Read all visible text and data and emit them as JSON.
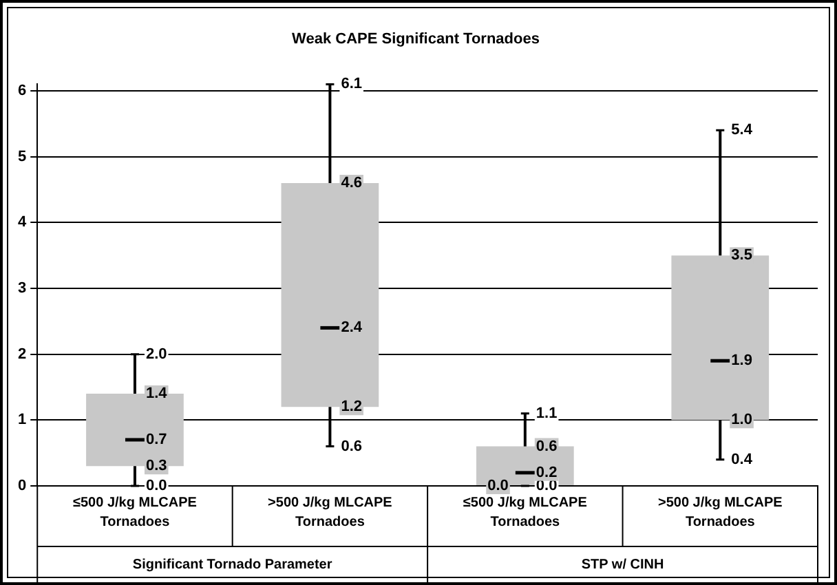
{
  "chart_data": {
    "type": "box",
    "title": "Weak CAPE Significant Tornadoes",
    "categories": [
      "≤500 J/kg MLCAPE Tornadoes",
      ">500 J/kg MLCAPE Tornadoes",
      "≤500 J/kg MLCAPE Tornadoes",
      ">500 J/kg MLCAPE Tornadoes"
    ],
    "boxes": [
      {
        "low": 0.0,
        "q1": 0.3,
        "median": 0.7,
        "q3": 1.4,
        "high": 2.0
      },
      {
        "low": 0.6,
        "q1": 1.2,
        "median": 2.4,
        "q3": 4.6,
        "high": 6.1
      },
      {
        "low": 0.0,
        "q1": 0.0,
        "median": 0.2,
        "q3": 0.6,
        "high": 1.1
      },
      {
        "low": 0.4,
        "q1": 1.0,
        "median": 1.9,
        "q3": 3.5,
        "high": 5.4
      }
    ],
    "color": "#c8c8c8",
    "value_labels": [
      [
        "0.0",
        "0.3",
        "0.7",
        "1.4",
        "2.0"
      ],
      [
        "0.6",
        "1.2",
        "2.4",
        "4.6",
        "6.1"
      ],
      [
        "0.0",
        "0.0",
        "0.2",
        "0.6",
        "1.1"
      ],
      [
        "0.4",
        "1.0",
        "1.9",
        "3.5",
        "5.4"
      ]
    ],
    "ylim": [
      0,
      6.1
    ],
    "yticks": [
      0,
      1,
      2,
      3,
      4,
      5,
      6
    ],
    "grid": "y",
    "legend": false,
    "annotations": [
      "Significant Tornado Parameter",
      "STP w/ CINH"
    ]
  }
}
